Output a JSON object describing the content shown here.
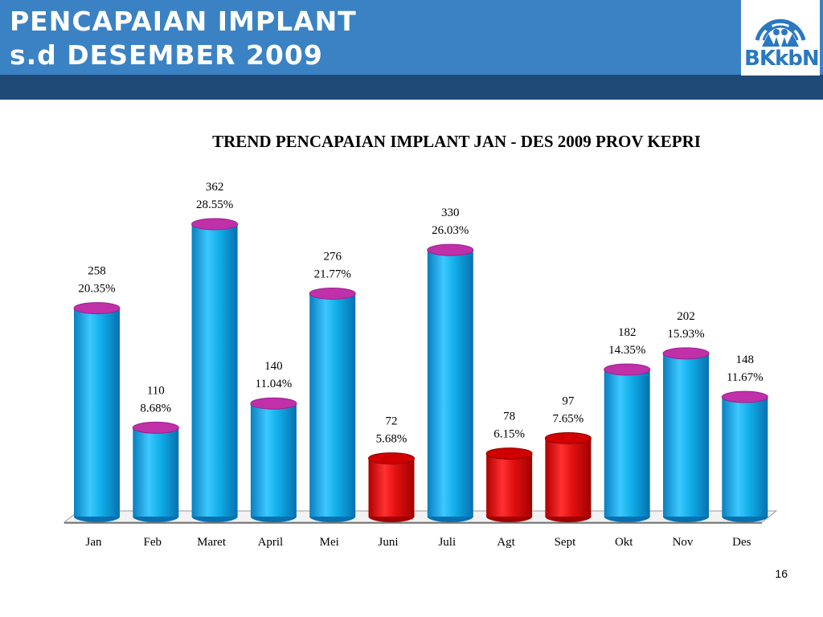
{
  "header": {
    "title_line1": "PENCAPAIAN IMPLANT",
    "title_line2": "s.d  DESEMBER  2009",
    "logo_text": "BKkbN"
  },
  "page_number": "16",
  "colors": {
    "header_blue": "#3b82c4",
    "header_strip": "#1f4a78",
    "bar_blue": "#10aee8",
    "bar_red": "#e01010",
    "cap_magenta": "#c030a8"
  },
  "chart_data": {
    "type": "bar",
    "title": "TREND PENCAPAIAN IMPLANT JAN - DES 2009 PROV KEPRI",
    "categories": [
      "Jan",
      "Feb",
      "Maret",
      "April",
      "Mei",
      "Juni",
      "Juli",
      "Agt",
      "Sept",
      "Okt",
      "Nov",
      "Des"
    ],
    "values": [
      258,
      110,
      362,
      140,
      276,
      72,
      330,
      78,
      97,
      182,
      202,
      148
    ],
    "percent_labels": [
      "20.35%",
      "8.68%",
      "28.55%",
      "11.04%",
      "21.77%",
      "5.68%",
      "26.03%",
      "6.15%",
      "7.65%",
      "14.35%",
      "15.93%",
      "11.67%"
    ],
    "bar_colors": [
      "blue",
      "blue",
      "blue",
      "blue",
      "blue",
      "red",
      "blue",
      "red",
      "red",
      "blue",
      "blue",
      "blue"
    ],
    "xlabel": "",
    "ylabel": "",
    "ylim": [
      0,
      362
    ],
    "grid": false,
    "legend": "none"
  }
}
